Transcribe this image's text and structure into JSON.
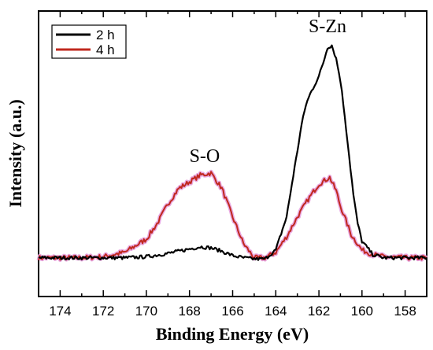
{
  "chart_data": {
    "type": "line",
    "title": "",
    "xlabel": "Binding Energy (eV)",
    "ylabel": "Intensity (a.u.)",
    "xlim": [
      175,
      157
    ],
    "x_reversed": true,
    "ylim": [
      0,
      100
    ],
    "y_ticks_shown": false,
    "x_ticks": [
      174,
      172,
      170,
      168,
      166,
      164,
      162,
      160,
      158
    ],
    "grid": false,
    "legend_position": "top-left",
    "colors": {
      "2 h": "#000000",
      "4 h": "#c0281e",
      "4 h glow": "#e8a8e0"
    },
    "series": [
      {
        "name": "2 h",
        "x": [
          175,
          174,
          173,
          172,
          171,
          170,
          169,
          168,
          167.5,
          167,
          166.5,
          166,
          165.5,
          165,
          164.5,
          164,
          163.5,
          163,
          162.8,
          162.6,
          162.4,
          162.2,
          162,
          161.8,
          161.6,
          161.4,
          161.2,
          161,
          160.8,
          160.6,
          160.4,
          160.2,
          160,
          159.5,
          159,
          158,
          157
        ],
        "y": [
          1.5,
          1.5,
          1.5,
          1.5,
          1.5,
          2.0,
          3.5,
          5.5,
          6.5,
          6.0,
          4.5,
          2.5,
          1.5,
          1.0,
          1.0,
          5.0,
          20.0,
          50.0,
          62.0,
          71.0,
          76.0,
          80.0,
          84.0,
          90.0,
          97.0,
          98.0,
          92.0,
          82.0,
          66.0,
          48.0,
          30.0,
          17.0,
          9.0,
          3.0,
          1.5,
          1.5,
          1.5
        ]
      },
      {
        "name": "4 h",
        "x": [
          175,
          174,
          173,
          172,
          171,
          170,
          169.5,
          169,
          168.5,
          168,
          167.5,
          167,
          166.5,
          166,
          165.5,
          165,
          164.5,
          164,
          163.5,
          163,
          162.5,
          162,
          161.5,
          161.2,
          161,
          160.5,
          160,
          159.5,
          159,
          158,
          157
        ],
        "y": [
          1.5,
          1.5,
          1.5,
          2.0,
          4.0,
          10.0,
          17.0,
          26.0,
          33.0,
          36.0,
          39.0,
          40.0,
          33.0,
          20.0,
          8.0,
          1.5,
          1.5,
          4.0,
          11.0,
          20.0,
          28.0,
          35.0,
          38.0,
          32.0,
          25.0,
          12.0,
          5.0,
          3.0,
          2.0,
          1.5,
          1.5
        ]
      }
    ],
    "annotations": [
      {
        "text": "S-O",
        "x": 167.3,
        "y": 45
      },
      {
        "text": "S-Zn",
        "x": 161.6,
        "y": 104
      }
    ]
  }
}
